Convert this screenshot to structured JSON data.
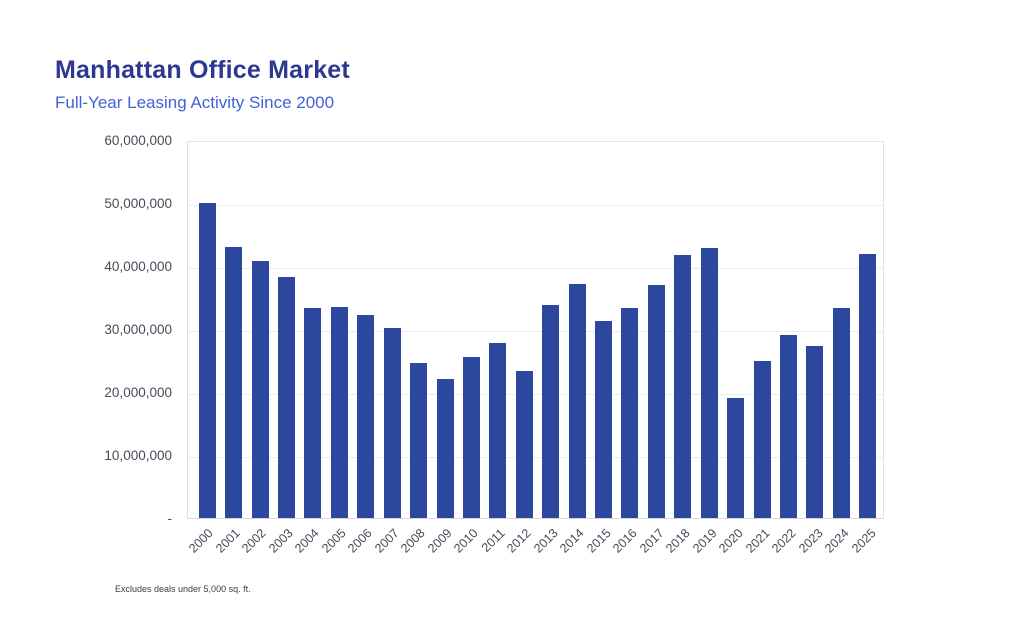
{
  "page": {
    "title": "Manhattan Office Market",
    "subtitle": "Full-Year Leasing Activity Since 2000",
    "footnote": "Excludes deals under 5,000 sq. ft."
  },
  "colors": {
    "bar": "#2C489E",
    "title_text": "#2B3990",
    "subtitle_text": "#4062D8",
    "axis_text": "#474B59",
    "gridline": "#EDEDEF"
  },
  "chart_data": {
    "type": "bar",
    "title": "Manhattan Office Market",
    "subtitle": "Full-Year Leasing Activity Since 2000",
    "footnote": "Excludes deals under 5,000 sq. ft.",
    "xlabel": "",
    "ylabel": "",
    "ylim": [
      0,
      60000000
    ],
    "grid": true,
    "legend": false,
    "categories": [
      "2000",
      "2001",
      "2002",
      "2003",
      "2004",
      "2005",
      "2006",
      "2007",
      "2008",
      "2009",
      "2010",
      "2011",
      "2012",
      "2013",
      "2014",
      "2015",
      "2016",
      "2017",
      "2018",
      "2019",
      "2020",
      "2021",
      "2022",
      "2023",
      "2024",
      "2025"
    ],
    "values": [
      50000000,
      43000000,
      40800000,
      38200000,
      33400000,
      33500000,
      32300000,
      30100000,
      24600000,
      22100000,
      25500000,
      27800000,
      23300000,
      33800000,
      37200000,
      31300000,
      33400000,
      37000000,
      41700000,
      42900000,
      19000000,
      25000000,
      29100000,
      27300000,
      33300000,
      41900000
    ],
    "yticks": [
      {
        "value": 60000000,
        "label": "60,000,000"
      },
      {
        "value": 50000000,
        "label": "50,000,000"
      },
      {
        "value": 40000000,
        "label": "40,000,000"
      },
      {
        "value": 30000000,
        "label": "30,000,000"
      },
      {
        "value": 20000000,
        "label": "20,000,000"
      },
      {
        "value": 10000000,
        "label": "10,000,000"
      },
      {
        "value": 0,
        "label": "-"
      }
    ]
  }
}
